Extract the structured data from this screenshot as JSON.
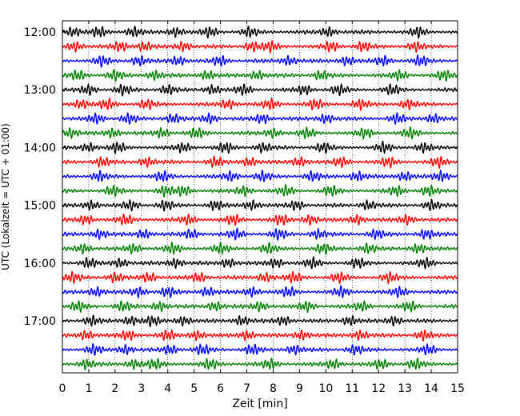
{
  "chart_data": {
    "type": "line",
    "title": "",
    "xlabel": "Zeit  [min]",
    "ylabel": "UTC (Lokalzeit = UTC + 01:00)",
    "xlim": [
      0,
      15
    ],
    "x_ticks": [
      0,
      1,
      2,
      3,
      4,
      5,
      6,
      7,
      8,
      9,
      10,
      11,
      12,
      13,
      14,
      15
    ],
    "y_tick_labels": [
      "12:00",
      "13:00",
      "14:00",
      "15:00",
      "16:00",
      "17:00"
    ],
    "trace_interval_min": 15,
    "trace_count": 24,
    "trace_colors": [
      "#000000",
      "#ff0000",
      "#0000ff",
      "#008000"
    ],
    "grid_x": true,
    "traces": [
      {
        "start": "12:00",
        "color": "#000000",
        "bursts": [
          0.4,
          1.4,
          2.7,
          4.3,
          5.6,
          7.1,
          10.1,
          13.5
        ]
      },
      {
        "start": "12:15",
        "color": "#ff0000",
        "bursts": [
          0.5,
          2.2,
          3.1,
          4.6,
          7.2,
          7.9,
          10.2,
          11.4,
          13.4
        ]
      },
      {
        "start": "12:30",
        "color": "#0000ff",
        "bursts": [
          1.5,
          2.9,
          4.4,
          6.0,
          8.6,
          10.8,
          12.2,
          13.6
        ]
      },
      {
        "start": "12:45",
        "color": "#008000",
        "bursts": [
          0.6,
          2.0,
          3.5,
          5.5,
          7.4,
          9.8,
          12.8,
          14.5
        ]
      },
      {
        "start": "13:00",
        "color": "#000000",
        "bursts": [
          1.0,
          2.3,
          4.0,
          5.7,
          6.9,
          9.2,
          10.5,
          12.5
        ]
      },
      {
        "start": "13:15",
        "color": "#ff0000",
        "bursts": [
          0.7,
          1.7,
          3.2,
          6.3,
          7.9,
          9.6,
          11.3,
          13.1
        ]
      },
      {
        "start": "13:30",
        "color": "#0000ff",
        "bursts": [
          1.3,
          2.5,
          4.2,
          5.6,
          7.6,
          10.0,
          12.7,
          14.1
        ]
      },
      {
        "start": "13:45",
        "color": "#008000",
        "bursts": [
          0.3,
          1.9,
          3.8,
          5.1,
          8.0,
          9.3,
          11.5,
          13.2
        ]
      },
      {
        "start": "14:00",
        "color": "#000000",
        "bursts": [
          1.0,
          2.1,
          4.6,
          6.2,
          7.6,
          9.9,
          12.2,
          13.7
        ]
      },
      {
        "start": "14:15",
        "color": "#ff0000",
        "bursts": [
          1.5,
          3.2,
          5.8,
          7.1,
          9.0,
          10.6,
          12.4,
          14.3
        ]
      },
      {
        "start": "14:30",
        "color": "#0000ff",
        "bursts": [
          1.4,
          3.8,
          6.4,
          7.6,
          9.5,
          11.2,
          13.0,
          14.4
        ]
      },
      {
        "start": "14:45",
        "color": "#008000",
        "bursts": [
          1.9,
          3.9,
          4.6,
          6.9,
          8.5,
          10.2,
          12.7,
          13.9
        ]
      },
      {
        "start": "15:00",
        "color": "#000000",
        "bursts": [
          1.1,
          2.6,
          3.9,
          5.8,
          7.2,
          8.9,
          11.6,
          14.0
        ]
      },
      {
        "start": "15:15",
        "color": "#ff0000",
        "bursts": [
          0.9,
          2.4,
          4.8,
          6.5,
          8.3,
          9.4,
          11.2,
          13.1
        ]
      },
      {
        "start": "15:30",
        "color": "#0000ff",
        "bursts": [
          1.4,
          3.1,
          4.9,
          6.6,
          8.2,
          9.7,
          11.9,
          13.8
        ]
      },
      {
        "start": "15:45",
        "color": "#008000",
        "bursts": [
          0.8,
          2.7,
          4.2,
          6.0,
          7.8,
          9.9,
          11.6,
          13.5
        ]
      },
      {
        "start": "16:00",
        "color": "#000000",
        "bursts": [
          1.0,
          2.2,
          4.3,
          6.3,
          8.1,
          9.5,
          11.2,
          13.8
        ]
      },
      {
        "start": "16:15",
        "color": "#ff0000",
        "bursts": [
          0.4,
          2.0,
          3.3,
          5.2,
          7.7,
          8.8,
          10.5,
          12.4
        ]
      },
      {
        "start": "16:30",
        "color": "#0000ff",
        "bursts": [
          1.3,
          2.9,
          4.0,
          5.5,
          7.2,
          8.6,
          10.6,
          12.8
        ]
      },
      {
        "start": "16:45",
        "color": "#008000",
        "bursts": [
          0.6,
          2.3,
          3.7,
          5.8,
          7.5,
          9.3,
          11.4,
          13.2
        ]
      },
      {
        "start": "17:00",
        "color": "#000000",
        "bursts": [
          1.1,
          2.6,
          3.4,
          4.6,
          6.8,
          8.4,
          10.9,
          12.6
        ]
      },
      {
        "start": "17:15",
        "color": "#ff0000",
        "bursts": [
          0.9,
          2.5,
          4.0,
          5.1,
          7.0,
          9.1,
          11.3,
          13.7
        ]
      },
      {
        "start": "17:30",
        "color": "#0000ff",
        "bursts": [
          1.2,
          2.4,
          4.1,
          5.3,
          7.2,
          8.8,
          11.1,
          13.9
        ]
      },
      {
        "start": "17:45",
        "color": "#008000",
        "bursts": [
          0.9,
          2.7,
          3.5,
          5.6,
          7.9,
          10.3,
          12.1,
          13.4
        ]
      }
    ]
  }
}
